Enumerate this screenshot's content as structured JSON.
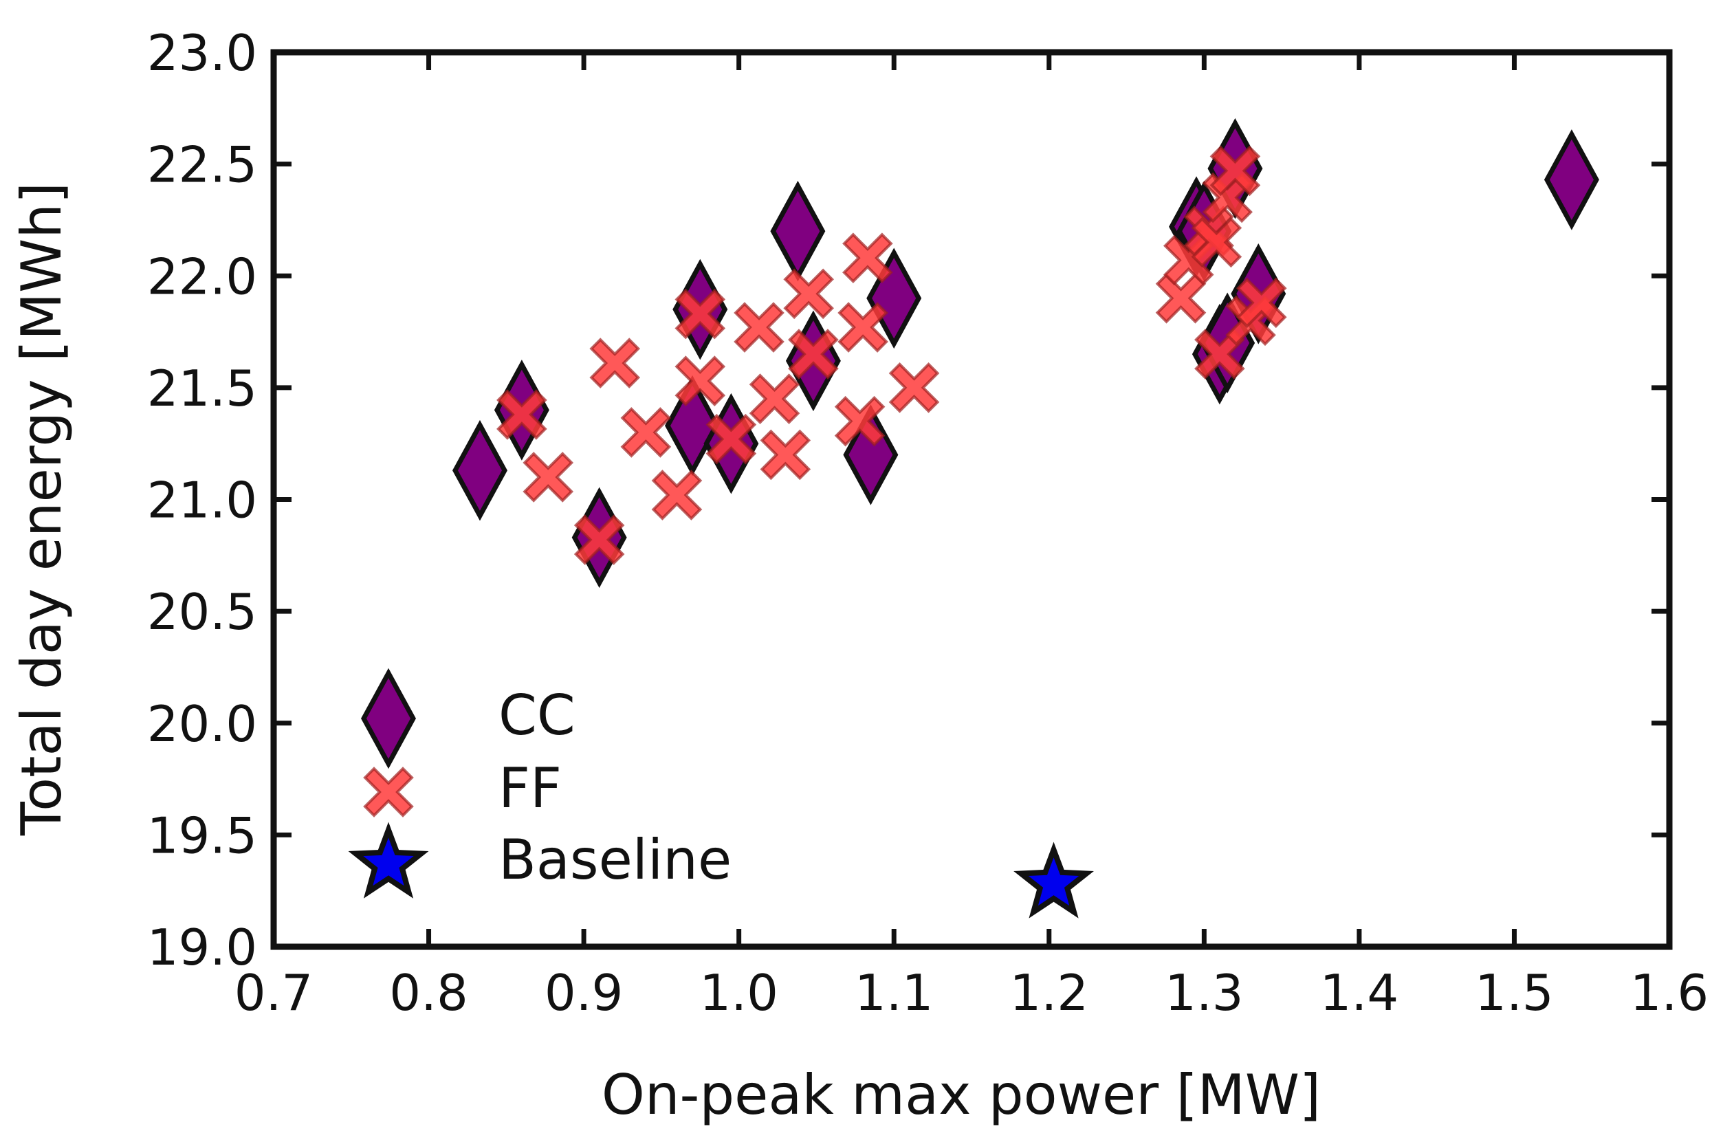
{
  "chart_data": {
    "type": "scatter",
    "title": "",
    "xlabel": "On-peak max power [MW]",
    "ylabel": "Total day energy [MWh]",
    "xlim": [
      0.7,
      1.6
    ],
    "ylim": [
      19.0,
      23.0
    ],
    "xticks": [
      0.7,
      0.8,
      0.9,
      1.0,
      1.1,
      1.2,
      1.3,
      1.4,
      1.5,
      1.6
    ],
    "yticks": [
      19.0,
      19.5,
      20.0,
      20.5,
      21.0,
      21.5,
      22.0,
      22.5,
      23.0
    ],
    "xtick_labels": [
      "0.7",
      "0.8",
      "0.9",
      "1.0",
      "1.1",
      "1.2",
      "1.3",
      "1.4",
      "1.5",
      "1.6"
    ],
    "ytick_labels": [
      "19.0",
      "19.5",
      "20.0",
      "20.5",
      "21.0",
      "21.5",
      "22.0",
      "22.5",
      "23.0"
    ],
    "grid": false,
    "legend_position": "lower-left",
    "series": [
      {
        "name": "CC",
        "marker": "diamond",
        "color": "#800080",
        "edge_color": "#111111",
        "points": [
          [
            0.833,
            21.13
          ],
          [
            0.86,
            21.4
          ],
          [
            0.91,
            20.83
          ],
          [
            0.97,
            21.33
          ],
          [
            0.975,
            21.85
          ],
          [
            0.995,
            21.25
          ],
          [
            1.038,
            22.2
          ],
          [
            1.048,
            21.62
          ],
          [
            1.085,
            21.2
          ],
          [
            1.1,
            21.9
          ],
          [
            1.295,
            22.22
          ],
          [
            1.3,
            22.2
          ],
          [
            1.31,
            21.65
          ],
          [
            1.315,
            21.7
          ],
          [
            1.32,
            22.48
          ],
          [
            1.335,
            21.92
          ],
          [
            1.537,
            22.43
          ]
        ]
      },
      {
        "name": "FF",
        "marker": "x",
        "color": "#ff3b3b",
        "edge_color": "#a02020",
        "points": [
          [
            0.86,
            21.38
          ],
          [
            0.877,
            21.1
          ],
          [
            0.91,
            20.82
          ],
          [
            0.92,
            21.61
          ],
          [
            0.94,
            21.3
          ],
          [
            0.96,
            21.02
          ],
          [
            0.975,
            21.83
          ],
          [
            0.975,
            21.53
          ],
          [
            0.995,
            21.27
          ],
          [
            1.013,
            21.77
          ],
          [
            1.023,
            21.45
          ],
          [
            1.03,
            21.2
          ],
          [
            1.045,
            21.92
          ],
          [
            1.048,
            21.65
          ],
          [
            1.078,
            21.35
          ],
          [
            1.08,
            21.77
          ],
          [
            1.083,
            22.08
          ],
          [
            1.113,
            21.5
          ],
          [
            1.285,
            21.9
          ],
          [
            1.29,
            22.07
          ],
          [
            1.303,
            22.2
          ],
          [
            1.308,
            22.15
          ],
          [
            1.31,
            21.65
          ],
          [
            1.315,
            22.35
          ],
          [
            1.32,
            22.47
          ],
          [
            1.33,
            21.8
          ],
          [
            1.337,
            21.88
          ]
        ]
      },
      {
        "name": "Baseline",
        "marker": "star",
        "color": "#0000ee",
        "edge_color": "#111111",
        "points": [
          [
            1.203,
            19.28
          ]
        ]
      }
    ]
  }
}
